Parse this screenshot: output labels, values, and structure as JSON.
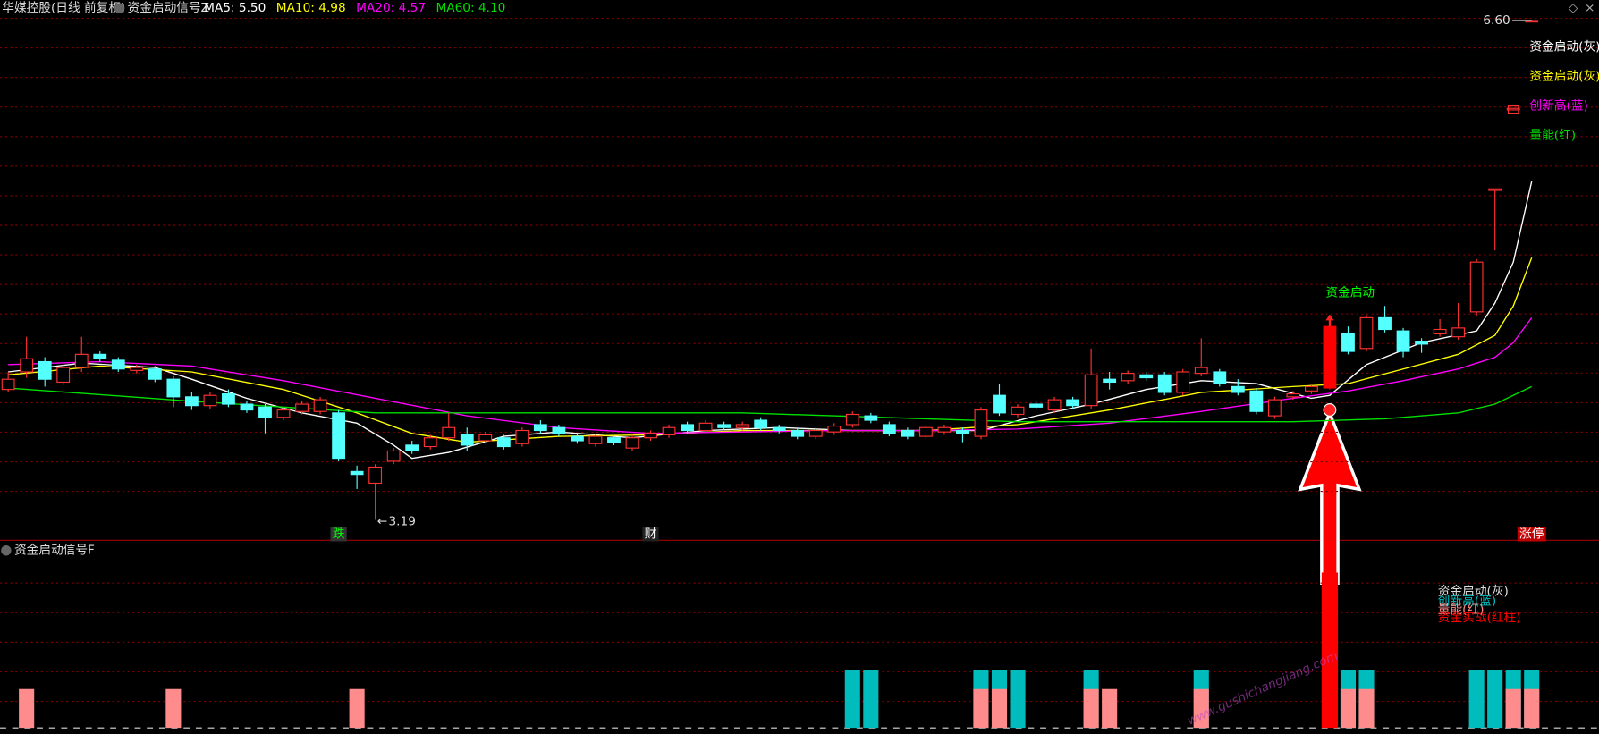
{
  "header": {
    "stock": "华媒控股(日线 前复权)",
    "indicator": "资金启动信号Z"
  },
  "chart_data": [
    {
      "type": "candlestick",
      "up_color": "#ff3232",
      "down_color": "#54ffff",
      "ylim": [
        3.05,
        6.74
      ],
      "grid": true,
      "ohlc": [
        [
          4.08,
          4.2,
          4.06,
          4.15
        ],
        [
          4.2,
          4.44,
          4.16,
          4.29
        ],
        [
          4.27,
          4.3,
          4.1,
          4.15
        ],
        [
          4.13,
          4.25,
          4.11,
          4.23
        ],
        [
          4.23,
          4.44,
          4.2,
          4.32
        ],
        [
          4.32,
          4.34,
          4.27,
          4.29
        ],
        [
          4.28,
          4.3,
          4.2,
          4.22
        ],
        [
          4.21,
          4.25,
          4.19,
          4.23
        ],
        [
          4.22,
          4.24,
          4.13,
          4.15
        ],
        [
          4.15,
          4.17,
          3.96,
          4.03
        ],
        [
          4.03,
          4.06,
          3.94,
          3.97
        ],
        [
          3.97,
          4.06,
          3.95,
          4.04
        ],
        [
          4.05,
          4.08,
          3.96,
          3.98
        ],
        [
          3.98,
          4.0,
          3.92,
          3.94
        ],
        [
          3.96,
          3.98,
          3.78,
          3.89
        ],
        [
          3.89,
          3.96,
          3.87,
          3.94
        ],
        [
          3.93,
          4.0,
          3.91,
          3.98
        ],
        [
          3.93,
          4.03,
          3.91,
          4.01
        ],
        [
          3.92,
          3.94,
          3.59,
          3.61
        ],
        [
          3.52,
          3.56,
          3.4,
          3.5
        ],
        [
          3.44,
          3.57,
          3.19,
          3.55
        ],
        [
          3.59,
          3.68,
          3.57,
          3.66
        ],
        [
          3.7,
          3.73,
          3.64,
          3.66
        ],
        [
          3.69,
          3.77,
          3.67,
          3.75
        ],
        [
          3.75,
          3.92,
          3.73,
          3.82
        ],
        [
          3.77,
          3.82,
          3.66,
          3.7
        ],
        [
          3.73,
          3.79,
          3.71,
          3.77
        ],
        [
          3.75,
          3.77,
          3.67,
          3.69
        ],
        [
          3.71,
          3.82,
          3.69,
          3.8
        ],
        [
          3.84,
          3.87,
          3.78,
          3.8
        ],
        [
          3.82,
          3.84,
          3.76,
          3.78
        ],
        [
          3.76,
          3.78,
          3.71,
          3.73
        ],
        [
          3.71,
          3.78,
          3.69,
          3.76
        ],
        [
          3.75,
          3.77,
          3.7,
          3.72
        ],
        [
          3.68,
          3.77,
          3.66,
          3.75
        ],
        [
          3.75,
          3.8,
          3.73,
          3.78
        ],
        [
          3.77,
          3.84,
          3.75,
          3.82
        ],
        [
          3.84,
          3.86,
          3.78,
          3.8
        ],
        [
          3.8,
          3.87,
          3.78,
          3.85
        ],
        [
          3.84,
          3.86,
          3.8,
          3.82
        ],
        [
          3.82,
          3.86,
          3.8,
          3.84
        ],
        [
          3.87,
          3.89,
          3.8,
          3.82
        ],
        [
          3.82,
          3.84,
          3.78,
          3.8
        ],
        [
          3.8,
          3.82,
          3.74,
          3.76
        ],
        [
          3.76,
          3.82,
          3.74,
          3.8
        ],
        [
          3.79,
          3.85,
          3.77,
          3.83
        ],
        [
          3.84,
          3.93,
          3.82,
          3.91
        ],
        [
          3.9,
          3.92,
          3.85,
          3.87
        ],
        [
          3.84,
          3.86,
          3.76,
          3.78
        ],
        [
          3.8,
          3.82,
          3.74,
          3.76
        ],
        [
          3.76,
          3.84,
          3.74,
          3.82
        ],
        [
          3.79,
          3.84,
          3.77,
          3.82
        ],
        [
          3.8,
          3.82,
          3.72,
          3.78
        ],
        [
          3.76,
          3.96,
          3.74,
          3.94
        ],
        [
          4.04,
          4.12,
          3.9,
          3.92
        ],
        [
          3.91,
          3.98,
          3.89,
          3.96
        ],
        [
          3.98,
          4.0,
          3.94,
          3.96
        ],
        [
          3.94,
          4.03,
          3.92,
          4.01
        ],
        [
          4.01,
          4.03,
          3.95,
          3.97
        ],
        [
          3.97,
          4.36,
          3.95,
          4.18
        ],
        [
          4.15,
          4.2,
          4.08,
          4.13
        ],
        [
          4.14,
          4.21,
          4.12,
          4.19
        ],
        [
          4.18,
          4.2,
          4.14,
          4.16
        ],
        [
          4.18,
          4.2,
          4.04,
          4.06
        ],
        [
          4.06,
          4.22,
          4.04,
          4.2
        ],
        [
          4.19,
          4.43,
          4.17,
          4.23
        ],
        [
          4.2,
          4.22,
          4.1,
          4.12
        ],
        [
          4.1,
          4.15,
          4.04,
          4.06
        ],
        [
          4.07,
          4.09,
          3.91,
          3.93
        ],
        [
          3.9,
          4.03,
          3.88,
          4.01
        ],
        [
          4.03,
          4.07,
          4.01,
          4.05
        ],
        [
          4.07,
          4.12,
          4.05,
          4.1
        ],
        [
          4.09,
          4.51,
          4.08,
          4.51
        ],
        [
          4.46,
          4.51,
          4.32,
          4.34
        ],
        [
          4.36,
          4.59,
          4.34,
          4.57
        ],
        [
          4.57,
          4.65,
          4.47,
          4.49
        ],
        [
          4.48,
          4.5,
          4.3,
          4.34
        ],
        [
          4.41,
          4.43,
          4.33,
          4.39
        ],
        [
          4.46,
          4.56,
          4.44,
          4.49
        ],
        [
          4.44,
          4.67,
          4.42,
          4.5
        ],
        [
          4.61,
          4.97,
          4.58,
          4.95
        ],
        [
          5.45,
          5.45,
          5.03,
          5.45
        ],
        [
          6.0,
          6.0,
          6.0,
          6.0
        ],
        [
          6.6,
          6.6,
          6.6,
          6.6
        ]
      ],
      "highlight": {
        "index": 72,
        "color": "#ff0000"
      },
      "series": [
        {
          "name": "MA5",
          "label": "5.50",
          "color": "#ffffff",
          "x": [
            0,
            4,
            8,
            10,
            13,
            16,
            19,
            21,
            22,
            24,
            27,
            30,
            34,
            38,
            42,
            46,
            50,
            53,
            56,
            59,
            62,
            65,
            68,
            71,
            72,
            74,
            77,
            80,
            81,
            82,
            83
          ],
          "values": [
            4.2,
            4.26,
            4.23,
            4.15,
            4.02,
            3.92,
            3.85,
            3.7,
            3.61,
            3.65,
            3.76,
            3.79,
            3.75,
            3.8,
            3.82,
            3.8,
            3.8,
            3.8,
            3.9,
            3.98,
            4.08,
            4.14,
            4.12,
            4.02,
            4.04,
            4.25,
            4.4,
            4.48,
            4.67,
            4.95,
            5.5
          ]
        },
        {
          "name": "MA10",
          "label": "4.98",
          "color": "#ffff00",
          "x": [
            0,
            5,
            10,
            15,
            19,
            22,
            25,
            30,
            35,
            40,
            45,
            50,
            55,
            60,
            65,
            70,
            73,
            76,
            79,
            81,
            82,
            83
          ],
          "values": [
            4.18,
            4.24,
            4.2,
            4.08,
            3.92,
            3.78,
            3.72,
            3.76,
            3.77,
            3.8,
            3.8,
            3.8,
            3.84,
            3.94,
            4.06,
            4.1,
            4.12,
            4.22,
            4.32,
            4.45,
            4.65,
            4.98
          ]
        },
        {
          "name": "MA20",
          "label": "4.57",
          "color": "#ff00ff",
          "x": [
            0,
            5,
            10,
            15,
            20,
            25,
            30,
            35,
            40,
            45,
            50,
            55,
            60,
            65,
            70,
            73,
            76,
            79,
            81,
            82,
            83
          ],
          "values": [
            4.25,
            4.27,
            4.24,
            4.14,
            4.02,
            3.9,
            3.82,
            3.78,
            3.79,
            3.8,
            3.8,
            3.81,
            3.85,
            3.93,
            4.02,
            4.07,
            4.14,
            4.22,
            4.3,
            4.4,
            4.57
          ]
        },
        {
          "name": "MA60",
          "label": "4.10",
          "color": "#00e000",
          "x": [
            0,
            10,
            20,
            30,
            40,
            50,
            55,
            60,
            65,
            70,
            75,
            79,
            81,
            83
          ],
          "values": [
            4.09,
            4.0,
            3.92,
            3.92,
            3.92,
            3.88,
            3.86,
            3.86,
            3.86,
            3.86,
            3.88,
            3.92,
            3.98,
            4.1
          ]
        }
      ],
      "high_label": {
        "value": 6.6,
        "label": "6.60"
      },
      "low_label": 3.19,
      "signal": {
        "index": 72,
        "text": "资金启动"
      },
      "legend": [
        {
          "text": "资金启动(灰)",
          "color": "#ffffff"
        },
        {
          "text": "资金启动(灰)",
          "color": "#ffff00"
        },
        {
          "text": "创新高(蓝)",
          "color": "#ff00ff"
        },
        {
          "text": "量能(红)",
          "color": "#00e000"
        }
      ],
      "markers": [
        {
          "x": 18,
          "label": "跌",
          "color": "#00ff00",
          "bg": "#333"
        },
        {
          "x": 35,
          "label": "财",
          "color": "#ffffff",
          "bg": "#222"
        },
        {
          "x": 83,
          "label": "涨停",
          "color": "#ffffff",
          "bg": "#c00000"
        }
      ]
    },
    {
      "type": "bar",
      "title": "资金启动信号F",
      "ylim": [
        0,
        9.4
      ],
      "series": [
        {
          "name": "创新高(蓝)",
          "color": "#00bcbc",
          "values": [
            null,
            null,
            null,
            null,
            null,
            null,
            null,
            null,
            null,
            null,
            null,
            null,
            null,
            null,
            null,
            null,
            null,
            null,
            null,
            null,
            null,
            null,
            null,
            null,
            null,
            null,
            null,
            null,
            null,
            null,
            null,
            null,
            null,
            null,
            null,
            null,
            null,
            null,
            null,
            null,
            null,
            null,
            null,
            null,
            null,
            null,
            3,
            3,
            null,
            null,
            null,
            null,
            null,
            3,
            3,
            3,
            null,
            null,
            null,
            3,
            null,
            null,
            null,
            null,
            null,
            3,
            null,
            null,
            null,
            null,
            null,
            null,
            null,
            3,
            3,
            null,
            null,
            null,
            null,
            null,
            3,
            3,
            3,
            3
          ]
        },
        {
          "name": "量能(红)",
          "color": "#ff8c8c",
          "values": [
            null,
            2,
            null,
            null,
            null,
            null,
            null,
            null,
            null,
            2,
            null,
            null,
            null,
            null,
            null,
            null,
            null,
            null,
            null,
            2,
            null,
            null,
            null,
            null,
            null,
            null,
            null,
            null,
            null,
            null,
            null,
            null,
            null,
            null,
            null,
            null,
            null,
            null,
            null,
            null,
            null,
            null,
            null,
            null,
            null,
            null,
            null,
            null,
            null,
            null,
            null,
            null,
            null,
            2,
            2,
            null,
            null,
            null,
            null,
            2,
            2,
            null,
            null,
            null,
            null,
            2,
            null,
            null,
            null,
            null,
            null,
            null,
            null,
            2,
            2,
            null,
            null,
            null,
            null,
            null,
            null,
            null,
            2,
            2
          ]
        },
        {
          "name": "资金实战(红柱)",
          "color": "#ff0000",
          "values": [
            null,
            null,
            null,
            null,
            null,
            null,
            null,
            null,
            null,
            null,
            null,
            null,
            null,
            null,
            null,
            null,
            null,
            null,
            null,
            null,
            null,
            null,
            null,
            null,
            null,
            null,
            null,
            null,
            null,
            null,
            null,
            null,
            null,
            null,
            null,
            null,
            null,
            null,
            null,
            null,
            null,
            null,
            null,
            null,
            null,
            null,
            null,
            null,
            null,
            null,
            null,
            null,
            null,
            null,
            null,
            null,
            null,
            null,
            null,
            null,
            null,
            null,
            null,
            null,
            null,
            null,
            null,
            null,
            null,
            null,
            null,
            null,
            8,
            null,
            null,
            null,
            null,
            null,
            null,
            null,
            null,
            null,
            null,
            null
          ]
        }
      ],
      "legend_extra": {
        "text": "资金启动(灰)",
        "color": "#dddddd"
      }
    }
  ],
  "watermark": "www.gushichangjiang.com"
}
